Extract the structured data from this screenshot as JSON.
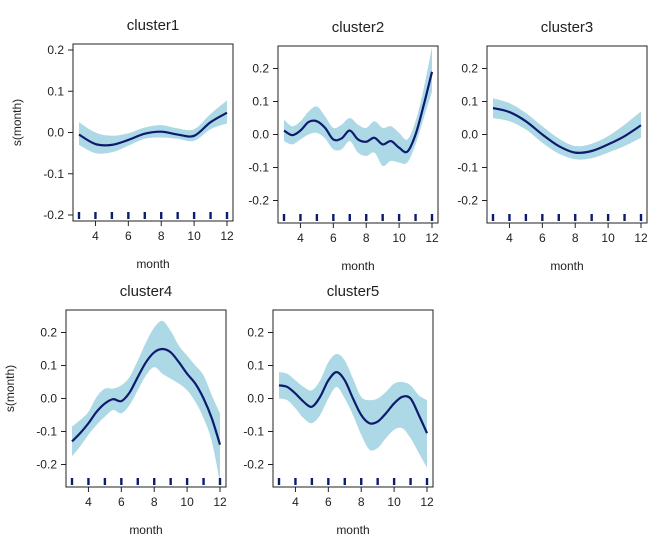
{
  "colors": {
    "band": "#add8e6",
    "line": "#0d1b6e",
    "rug": "#0d1b6e",
    "axis": "#222222"
  },
  "chart_data": [
    {
      "type": "line",
      "title": "cluster1",
      "xlabel": "month",
      "ylabel": "s(month)",
      "xlim": [
        3,
        12
      ],
      "ylim": [
        -0.2,
        0.2
      ],
      "xticks": [
        "4",
        "6",
        "8",
        "10",
        "12"
      ],
      "yticks": [
        "-0.2",
        "-0.1",
        "0.0",
        "0.1",
        "0.2"
      ],
      "x": [
        3,
        4,
        5,
        6,
        7,
        8,
        9,
        10,
        11,
        12
      ],
      "series": [
        {
          "values": [
            -0.005,
            -0.028,
            -0.03,
            -0.018,
            -0.003,
            0.002,
            -0.005,
            -0.008,
            0.025,
            0.048
          ],
          "lower": [
            -0.03,
            -0.05,
            -0.048,
            -0.032,
            -0.015,
            -0.012,
            -0.015,
            -0.02,
            0.008,
            0.022
          ],
          "upper": [
            0.025,
            0.0,
            -0.008,
            -0.002,
            0.012,
            0.018,
            0.01,
            0.008,
            0.045,
            0.078
          ]
        }
      ],
      "rug": [
        3,
        4,
        5,
        6,
        7,
        8,
        9,
        10,
        11,
        12
      ],
      "grid": false
    },
    {
      "type": "line",
      "title": "cluster2",
      "xlabel": "month",
      "ylabel": "",
      "xlim": [
        3,
        12
      ],
      "ylim": [
        -0.25,
        0.25
      ],
      "xticks": [
        "4",
        "6",
        "8",
        "10",
        "12"
      ],
      "yticks": [
        "-0.2",
        "-0.1",
        "0.0",
        "0.1",
        "0.2"
      ],
      "x": [
        3,
        3.5,
        4,
        4.5,
        5,
        5.5,
        6,
        6.5,
        7,
        7.5,
        8,
        8.5,
        9,
        9.5,
        10,
        10.5,
        11,
        11.5,
        12
      ],
      "series": [
        {
          "values": [
            0.012,
            -0.002,
            0.012,
            0.038,
            0.04,
            0.02,
            -0.015,
            -0.012,
            0.012,
            -0.015,
            -0.022,
            -0.01,
            -0.03,
            -0.02,
            -0.04,
            -0.052,
            0.0,
            0.09,
            0.19
          ],
          "lower": [
            -0.02,
            -0.03,
            -0.015,
            0.0,
            0.005,
            -0.012,
            -0.045,
            -0.045,
            -0.02,
            -0.055,
            -0.065,
            -0.055,
            -0.095,
            -0.08,
            -0.085,
            -0.085,
            -0.03,
            0.05,
            0.13
          ],
          "upper": [
            0.045,
            0.025,
            0.04,
            0.07,
            0.085,
            0.055,
            0.02,
            0.03,
            0.05,
            0.03,
            0.02,
            0.04,
            0.02,
            0.025,
            0.005,
            -0.015,
            0.04,
            0.14,
            0.265
          ]
        }
      ],
      "rug": [
        3,
        4,
        5,
        6,
        7,
        8,
        9,
        10,
        11,
        12
      ],
      "grid": false
    },
    {
      "type": "line",
      "title": "cluster3",
      "xlabel": "month",
      "ylabel": "",
      "xlim": [
        3,
        12
      ],
      "ylim": [
        -0.25,
        0.25
      ],
      "xticks": [
        "4",
        "6",
        "8",
        "10",
        "12"
      ],
      "yticks": [
        "-0.2",
        "-0.1",
        "0.0",
        "0.1",
        "0.2"
      ],
      "x": [
        3,
        4,
        5,
        6,
        7,
        8,
        9,
        10,
        11,
        12
      ],
      "series": [
        {
          "values": [
            0.08,
            0.068,
            0.04,
            0.0,
            -0.035,
            -0.055,
            -0.05,
            -0.03,
            -0.005,
            0.028
          ],
          "lower": [
            0.05,
            0.04,
            0.015,
            -0.025,
            -0.058,
            -0.075,
            -0.072,
            -0.055,
            -0.035,
            -0.01
          ],
          "upper": [
            0.11,
            0.095,
            0.065,
            0.025,
            -0.012,
            -0.035,
            -0.028,
            -0.005,
            0.03,
            0.07
          ]
        }
      ],
      "rug": [
        3,
        4,
        5,
        6,
        7,
        8,
        9,
        10,
        11,
        12
      ],
      "grid": false
    },
    {
      "type": "line",
      "title": "cluster4",
      "xlabel": "month",
      "ylabel": "s(month)",
      "xlim": [
        3,
        12
      ],
      "ylim": [
        -0.25,
        0.25
      ],
      "xticks": [
        "4",
        "6",
        "8",
        "10",
        "12"
      ],
      "yticks": [
        "-0.2",
        "-0.1",
        "0.0",
        "0.1",
        "0.2"
      ],
      "x": [
        3,
        3.5,
        4,
        4.5,
        5,
        5.5,
        6,
        6.5,
        7,
        7.5,
        8,
        8.5,
        9,
        9.5,
        10,
        10.5,
        11,
        11.5,
        12
      ],
      "series": [
        {
          "values": [
            -0.13,
            -0.105,
            -0.075,
            -0.04,
            -0.015,
            -0.002,
            -0.008,
            0.018,
            0.065,
            0.11,
            0.14,
            0.15,
            0.14,
            0.11,
            0.075,
            0.045,
            0.0,
            -0.06,
            -0.14
          ],
          "lower": [
            -0.175,
            -0.145,
            -0.11,
            -0.08,
            -0.055,
            -0.035,
            -0.045,
            -0.02,
            0.025,
            0.07,
            0.095,
            0.075,
            0.06,
            0.045,
            0.025,
            -0.01,
            -0.06,
            -0.13,
            -0.255
          ],
          "upper": [
            -0.085,
            -0.065,
            -0.04,
            0.005,
            0.03,
            0.03,
            0.04,
            0.065,
            0.115,
            0.17,
            0.215,
            0.235,
            0.205,
            0.16,
            0.13,
            0.1,
            0.07,
            0.01,
            -0.045
          ]
        }
      ],
      "rug": [
        3,
        4,
        5,
        6,
        7,
        8,
        9,
        10,
        11,
        12
      ],
      "grid": false
    },
    {
      "type": "line",
      "title": "cluster5",
      "xlabel": "month",
      "ylabel": "",
      "xlim": [
        3,
        12
      ],
      "ylim": [
        -0.25,
        0.25
      ],
      "xticks": [
        "4",
        "6",
        "8",
        "10",
        "12"
      ],
      "yticks": [
        "-0.2",
        "-0.1",
        "0.0",
        "0.1",
        "0.2"
      ],
      "x": [
        3,
        3.5,
        4,
        4.5,
        5,
        5.5,
        6,
        6.5,
        7,
        7.5,
        8,
        8.5,
        9,
        9.5,
        10,
        10.5,
        11,
        11.5,
        12
      ],
      "series": [
        {
          "values": [
            0.04,
            0.035,
            0.015,
            -0.01,
            -0.025,
            0.005,
            0.055,
            0.08,
            0.055,
            0.0,
            -0.05,
            -0.075,
            -0.07,
            -0.045,
            -0.015,
            0.005,
            0.0,
            -0.05,
            -0.105
          ],
          "lower": [
            0.0,
            -0.005,
            -0.03,
            -0.06,
            -0.075,
            -0.05,
            0.0,
            0.035,
            0.0,
            -0.05,
            -0.11,
            -0.155,
            -0.15,
            -0.12,
            -0.095,
            -0.09,
            -0.12,
            -0.165,
            -0.21
          ],
          "upper": [
            0.08,
            0.075,
            0.055,
            0.035,
            0.025,
            0.055,
            0.11,
            0.135,
            0.115,
            0.06,
            0.005,
            -0.005,
            0.0,
            0.02,
            0.045,
            0.05,
            0.04,
            0.01,
            -0.005
          ]
        }
      ],
      "rug": [
        3,
        4,
        5,
        6,
        7,
        8,
        9,
        10,
        11,
        12
      ],
      "grid": false
    }
  ]
}
